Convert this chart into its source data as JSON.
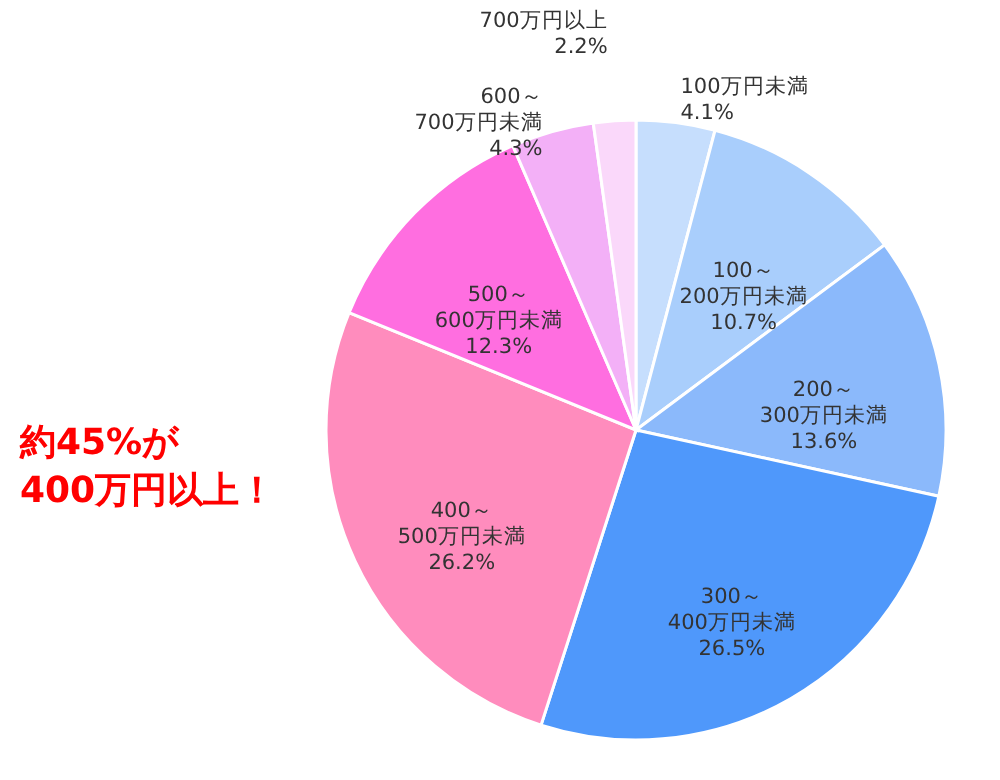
{
  "chart_data": {
    "type": "pie",
    "categories": [
      "100万円未満",
      "100～200万円未満",
      "200～300万円未満",
      "300～400万円未満",
      "400～500万円未満",
      "500～600万円未満",
      "600～700万円未満",
      "700万円以上"
    ],
    "values": [
      4.1,
      10.7,
      13.6,
      26.5,
      26.2,
      12.3,
      4.3,
      2.2
    ],
    "value_labels": [
      "4.1%",
      "10.7%",
      "13.6%",
      "26.5%",
      "26.2%",
      "12.3%",
      "4.3%",
      "2.2%"
    ],
    "colors": [
      "#c6defd",
      "#a9cefc",
      "#8bb9fb",
      "#4f98fb",
      "#ff8cbd",
      "#ff6ee0",
      "#f3b0f7",
      "#fad8fa"
    ],
    "annotations": [
      "約45%が\n400万円以上！"
    ],
    "legend": false
  }
}
